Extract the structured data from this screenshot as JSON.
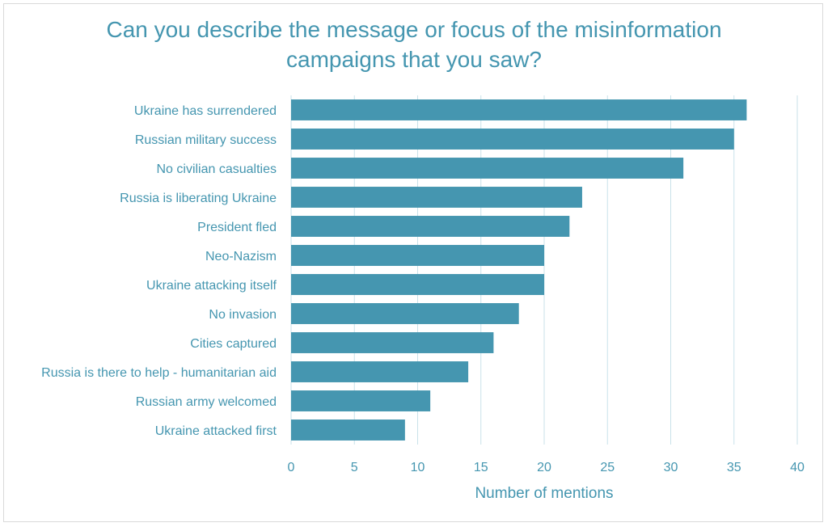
{
  "chart_data": {
    "type": "bar",
    "orientation": "horizontal",
    "title": "Can you describe the message or focus of the misinformation campaigns that you saw?",
    "title_lines": [
      "Can you describe the message or focus of the misinformation",
      "campaigns that you saw?"
    ],
    "xlabel": "Number of mentions",
    "ylabel": "",
    "categories": [
      "Ukraine has surrendered",
      "Russian military success",
      "No civilian casualties",
      "Russia is liberating Ukraine",
      "President fled",
      "Neo-Nazism",
      "Ukraine attacking itself",
      "No invasion",
      "Cities captured",
      "Russia is there to help - humanitarian aid",
      "Russian army welcomed",
      "Ukraine attacked first"
    ],
    "values": [
      36,
      35,
      31,
      23,
      22,
      20,
      20,
      18,
      16,
      14,
      11,
      9
    ],
    "xlim": [
      0,
      40
    ],
    "xticks": [
      "0",
      "5",
      "10",
      "15",
      "20",
      "25",
      "30",
      "35",
      "40"
    ],
    "grid": "vertical",
    "legend": "none",
    "colors": {
      "bar": "#4596b0",
      "text": "#4596b0",
      "grid": "#c9e2ea"
    }
  }
}
